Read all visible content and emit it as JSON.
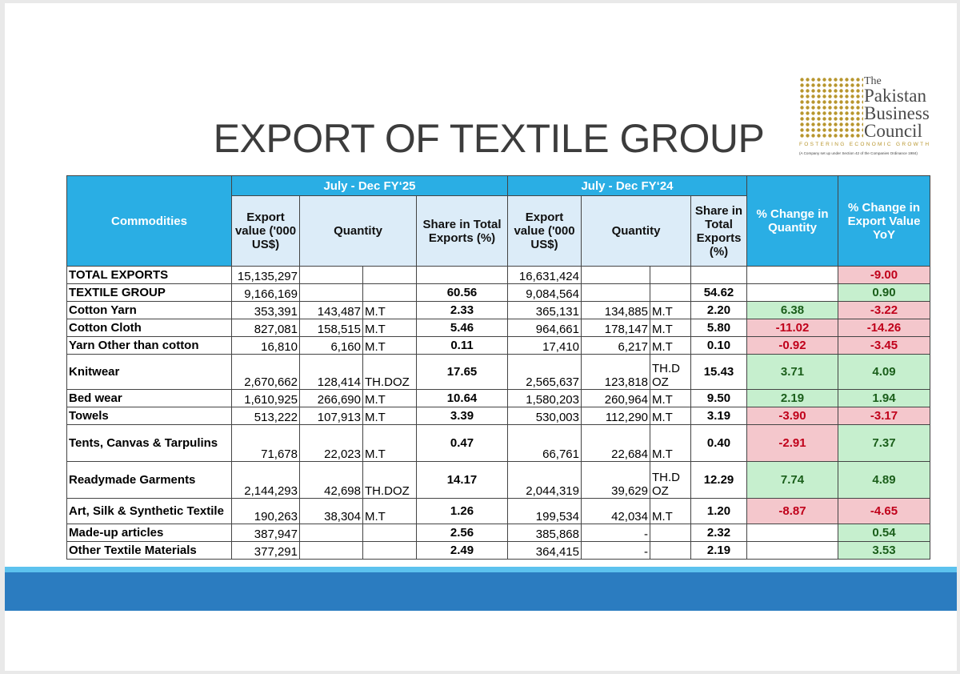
{
  "title": "EXPORT OF TEXTILE GROUP",
  "logo": {
    "the": "The",
    "line1": "Pakistan",
    "line2": "Business",
    "line3": "Council",
    "tagline": "FOSTERING ECONOMIC GROWTH",
    "note": "(A Company set up under Section 42 of the Companies Ordinance 1984)"
  },
  "table": {
    "header": {
      "commodities": "Commodities",
      "period1": "July - Dec FY‘25",
      "period2": "July - Dec FY‘24",
      "export_value1": "Export value ('000 US$)",
      "quantity1": "Quantity",
      "share1": "Share in Total Exports (%)",
      "export_value2": "Export value ('000 US$)",
      "quantity2": "Quantity",
      "share2": "Share in Total Exports (%)",
      "change_qty": "% Change in Quantity",
      "change_value": "% Change in Export Value YoY"
    },
    "rows": [
      [
        "TOTAL EXPORTS",
        "15,135,297",
        null,
        null,
        null,
        "16,631,424",
        null,
        null,
        null,
        null,
        "-9.00"
      ],
      [
        "TEXTILE GROUP",
        "9,166,169",
        null,
        null,
        "60.56",
        "9,084,564",
        null,
        null,
        "54.62",
        null,
        "0.90"
      ],
      [
        "Cotton Yarn",
        "353,391",
        "143,487",
        "M.T",
        "2.33",
        "365,131",
        "134,885",
        "M.T",
        "2.20",
        "6.38",
        "-3.22"
      ],
      [
        "Cotton Cloth",
        "827,081",
        "158,515",
        "M.T",
        "5.46",
        "964,661",
        "178,147",
        "M.T",
        "5.80",
        "-11.02",
        "-14.26"
      ],
      [
        "Yarn Other than cotton",
        "16,810",
        "6,160",
        "M.T",
        "0.11",
        "17,410",
        "6,217",
        "M.T",
        "0.10",
        "-0.92",
        "-3.45"
      ],
      [
        "Knitwear",
        "2,670,662",
        "128,414",
        "TH.DOZ",
        "17.65",
        "2,565,637",
        "123,818",
        "TH.DOZ",
        "15.43",
        "3.71",
        "4.09"
      ],
      [
        "Bed wear",
        "1,610,925",
        "266,690",
        "M.T",
        "10.64",
        "1,580,203",
        "260,964",
        "M.T",
        "9.50",
        "2.19",
        "1.94"
      ],
      [
        "Towels",
        "513,222",
        "107,913",
        "M.T",
        "3.39",
        "530,003",
        "112,290",
        "M.T",
        "3.19",
        "-3.90",
        "-3.17"
      ],
      [
        "Tents, Canvas & Tarpulins",
        "71,678",
        "22,023",
        "M.T",
        "0.47",
        "66,761",
        "22,684",
        "M.T",
        "0.40",
        "-2.91",
        "7.37"
      ],
      [
        "Readymade Garments",
        "2,144,293",
        "42,698",
        "TH.DOZ",
        "14.17",
        "2,044,319",
        "39,629",
        "TH.DOZ",
        "12.29",
        "7.74",
        "4.89"
      ],
      [
        "Art, Silk & Synthetic Textile",
        "190,263",
        "38,304",
        "M.T",
        "1.26",
        "199,534",
        "42,034",
        "M.T",
        "1.20",
        "-8.87",
        "-4.65"
      ],
      [
        "Made-up articles",
        "387,947",
        null,
        null,
        "2.56",
        "385,868",
        "-",
        null,
        "2.32",
        null,
        "0.54"
      ],
      [
        "Other Textile Materials",
        "377,291",
        null,
        null,
        "2.49",
        "364,415",
        "-",
        null,
        "2.19",
        null,
        "3.53"
      ]
    ]
  }
}
